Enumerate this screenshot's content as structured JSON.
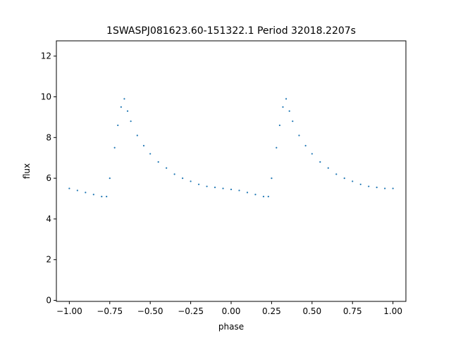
{
  "chart_data": {
    "type": "scatter",
    "title": "1SWASPJ081623.60-151322.1 Period 32018.2207s",
    "xlabel": "phase",
    "ylabel": "flux",
    "xlim": [
      -1.08,
      1.08
    ],
    "ylim": [
      -0.05,
      12.75
    ],
    "grid": false,
    "x_ticks": [
      {
        "value": -1.0,
        "label": "−1.00"
      },
      {
        "value": -0.75,
        "label": "−0.75"
      },
      {
        "value": -0.5,
        "label": "−0.50"
      },
      {
        "value": -0.25,
        "label": "−0.25"
      },
      {
        "value": 0.0,
        "label": "0.00"
      },
      {
        "value": 0.25,
        "label": "0.25"
      },
      {
        "value": 0.5,
        "label": "0.50"
      },
      {
        "value": 0.75,
        "label": "0.75"
      },
      {
        "value": 1.0,
        "label": "1.00"
      }
    ],
    "y_ticks": [
      {
        "value": 0,
        "label": "0"
      },
      {
        "value": 2,
        "label": "2"
      },
      {
        "value": 4,
        "label": "4"
      },
      {
        "value": 6,
        "label": "6"
      },
      {
        "value": 8,
        "label": "8"
      },
      {
        "value": 10,
        "label": "10"
      },
      {
        "value": 12,
        "label": "12"
      }
    ],
    "marker_color": "#1f77b4",
    "series": [
      {
        "points": [
          [
            -1.0,
            5.5
          ],
          [
            -0.95,
            5.4
          ],
          [
            -0.9,
            5.3
          ],
          [
            -0.85,
            5.2
          ],
          [
            -0.8,
            5.1
          ],
          [
            -0.77,
            5.1
          ],
          [
            -0.75,
            6.0
          ],
          [
            -0.72,
            7.5
          ],
          [
            -0.7,
            8.6
          ],
          [
            -0.68,
            9.5
          ],
          [
            -0.66,
            9.9
          ],
          [
            -0.64,
            9.3
          ],
          [
            -0.62,
            8.8
          ],
          [
            -0.58,
            8.1
          ],
          [
            -0.54,
            7.6
          ],
          [
            -0.5,
            7.2
          ],
          [
            -0.45,
            6.8
          ],
          [
            -0.4,
            6.5
          ],
          [
            -0.35,
            6.2
          ],
          [
            -0.3,
            6.0
          ],
          [
            -0.25,
            5.85
          ],
          [
            -0.2,
            5.7
          ],
          [
            -0.15,
            5.6
          ],
          [
            -0.1,
            5.55
          ],
          [
            -0.05,
            5.5
          ],
          [
            0.0,
            5.45
          ],
          [
            0.05,
            5.4
          ],
          [
            0.1,
            5.3
          ],
          [
            0.15,
            5.2
          ],
          [
            0.2,
            5.1
          ],
          [
            0.23,
            5.1
          ],
          [
            0.25,
            6.0
          ],
          [
            0.28,
            7.5
          ],
          [
            0.3,
            8.6
          ],
          [
            0.32,
            9.5
          ],
          [
            0.34,
            9.9
          ],
          [
            0.36,
            9.3
          ],
          [
            0.38,
            8.8
          ],
          [
            0.42,
            8.1
          ],
          [
            0.46,
            7.6
          ],
          [
            0.5,
            7.2
          ],
          [
            0.55,
            6.8
          ],
          [
            0.6,
            6.5
          ],
          [
            0.65,
            6.2
          ],
          [
            0.7,
            6.0
          ],
          [
            0.75,
            5.85
          ],
          [
            0.8,
            5.7
          ],
          [
            0.85,
            5.6
          ],
          [
            0.9,
            5.55
          ],
          [
            0.95,
            5.5
          ],
          [
            1.0,
            5.5
          ]
        ]
      }
    ]
  }
}
